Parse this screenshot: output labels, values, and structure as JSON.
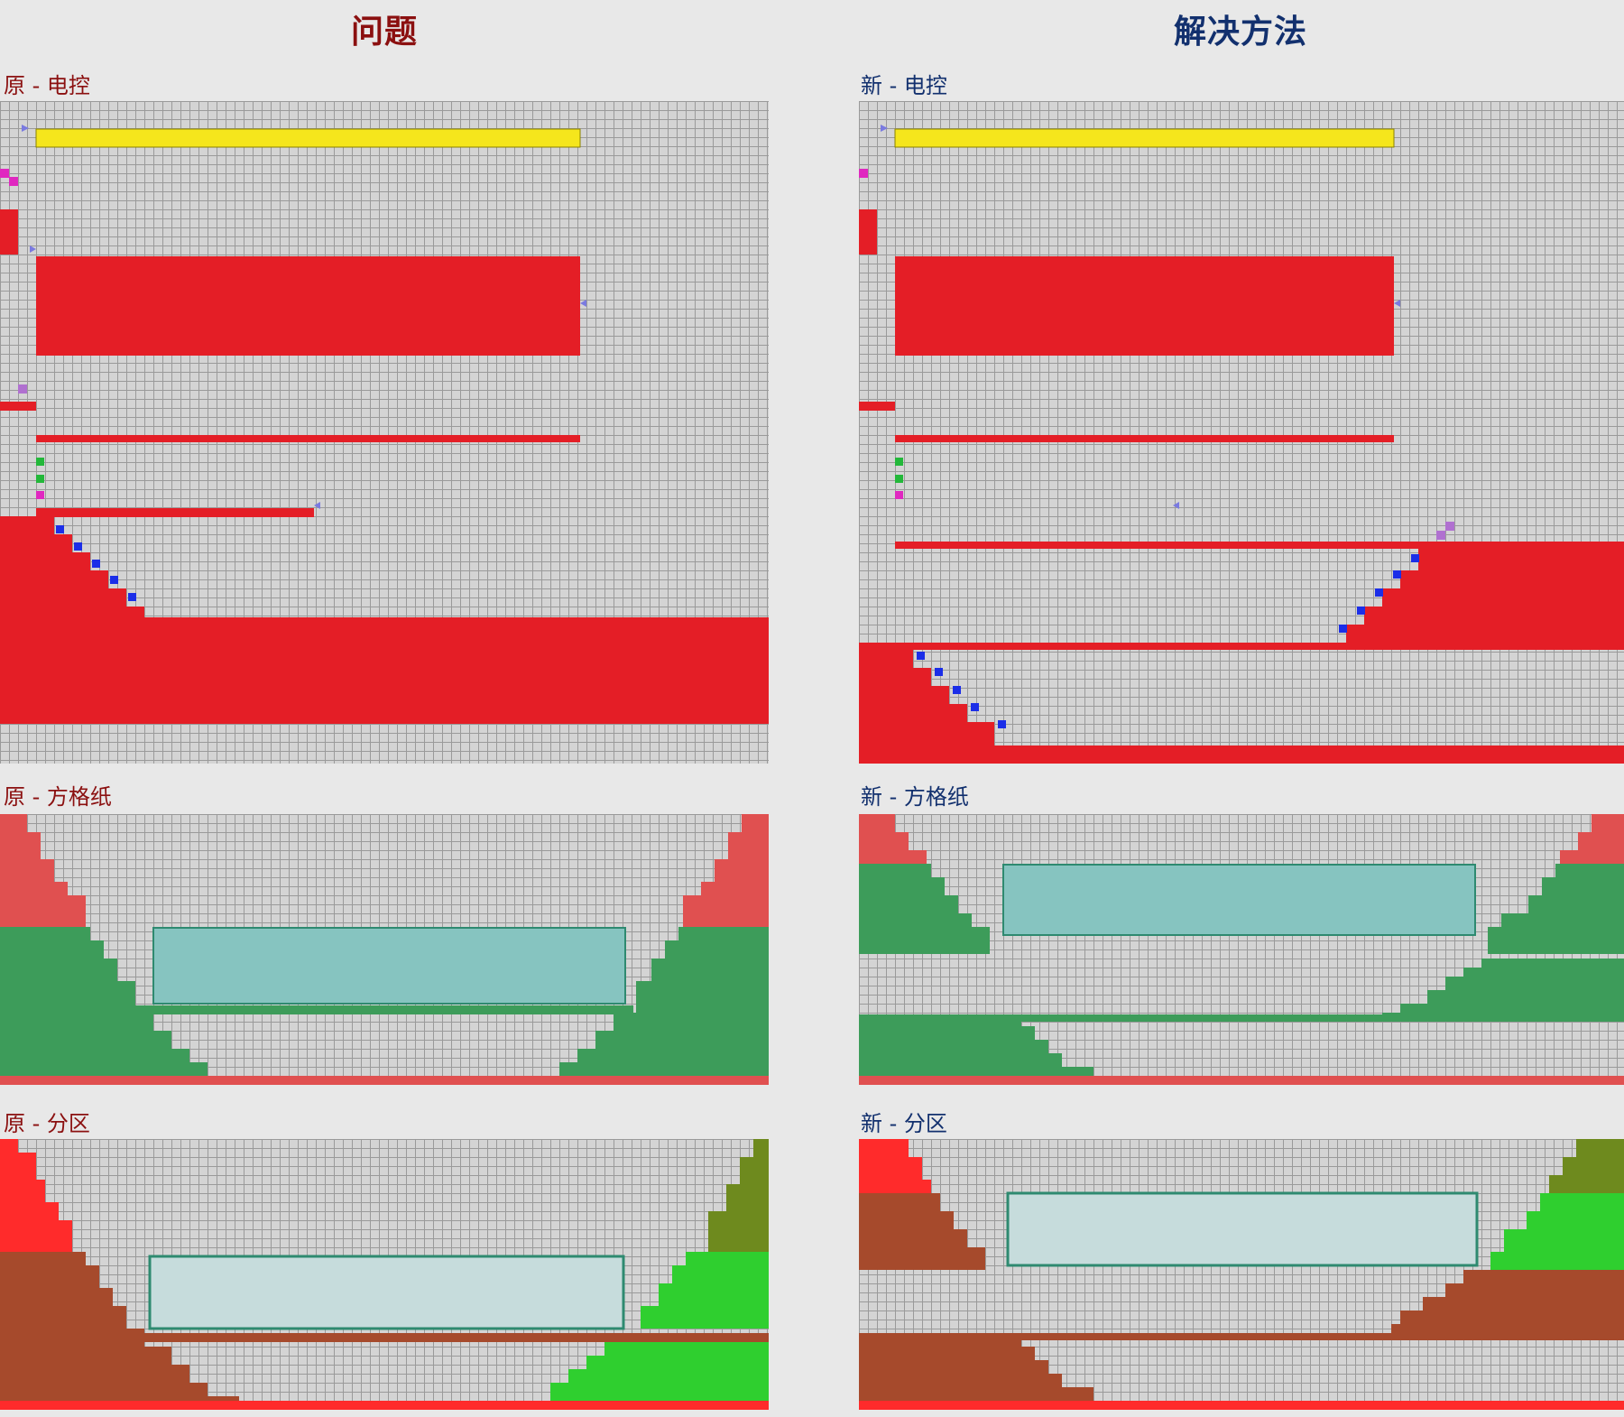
{
  "headers": {
    "problem": "问题",
    "solution": "解决方法"
  },
  "labels": {
    "orig_ec": "原 - 电控",
    "new_ec": "新 - 电控",
    "orig_gp": "原 - 方格纸",
    "new_gp": "新 - 方格纸",
    "orig_zn": "原 - 分区",
    "new_zn": "新 - 分区"
  },
  "colors": {
    "power_red": "#e41e26",
    "yellow_strip": "#f5e61c",
    "terrain_green": "#3d9c5a",
    "water_teal": "#86c4c0",
    "zone_brown": "#a64a2c",
    "zone_green": "#2fcf2f",
    "zone_olive": "#6e8a1e",
    "zone_water": "#c6dcdc",
    "grid_line": "#9a9a9a"
  },
  "icons": [
    "arrow-marker-icon",
    "switch-tile-icon",
    "junction-tile-icon"
  ]
}
